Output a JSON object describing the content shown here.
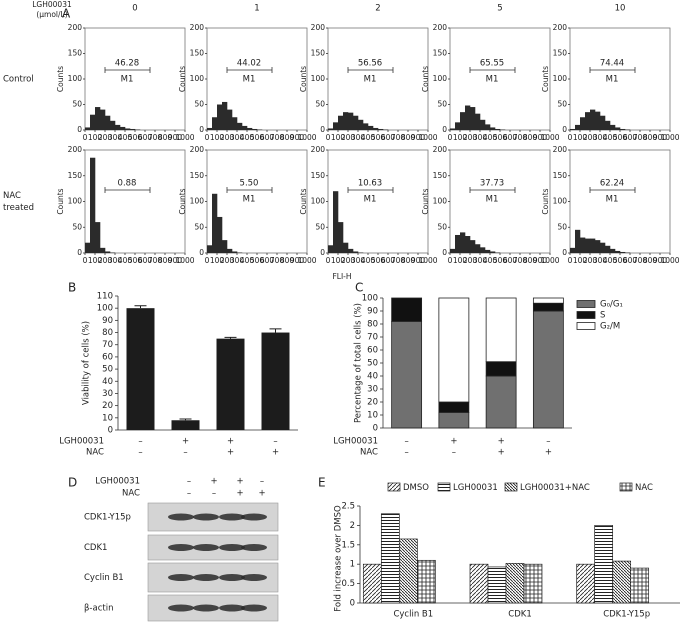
{
  "panel_labels": [
    "A",
    "B",
    "C",
    "D",
    "E"
  ],
  "chart_data": [
    {
      "type": "histogram-grid",
      "treatment_label": [
        "LGH00031",
        "(μmol/L)"
      ],
      "columns": [
        "0",
        "1",
        "2",
        "5",
        "10"
      ],
      "rows": [
        [
          "Control"
        ],
        [
          "NAC",
          "treated"
        ]
      ],
      "xlabel": "FLI-H",
      "ylabel": "Counts",
      "color": "#2b2b2b",
      "bins": [
        0,
        50,
        100,
        150,
        200,
        250,
        300,
        350,
        400,
        450,
        500,
        550,
        600,
        650,
        700,
        750,
        800,
        850,
        900,
        950,
        1000
      ],
      "xlim": [
        0,
        1000
      ],
      "xticks": [
        0,
        100,
        200,
        300,
        400,
        500,
        600,
        700,
        800,
        900,
        1000
      ],
      "ylim": [
        0,
        200
      ],
      "yticks": [
        0,
        50,
        100,
        150,
        200
      ],
      "panels": [
        {
          "gate": "46.28",
          "gate_name": "M1",
          "counts": [
            5,
            30,
            45,
            40,
            28,
            18,
            10,
            6,
            3,
            2,
            1,
            0,
            0,
            0,
            0,
            0,
            0,
            0,
            0,
            0
          ]
        },
        {
          "gate": "44.02",
          "gate_name": "M1",
          "counts": [
            4,
            25,
            50,
            55,
            40,
            25,
            14,
            8,
            4,
            2,
            1,
            0,
            0,
            0,
            0,
            0,
            0,
            0,
            0,
            0
          ]
        },
        {
          "gate": "56.56",
          "gate_name": "M1",
          "counts": [
            3,
            15,
            28,
            35,
            34,
            28,
            20,
            13,
            8,
            4,
            2,
            1,
            0,
            0,
            0,
            0,
            0,
            0,
            0,
            0
          ]
        },
        {
          "gate": "65.55",
          "gate_name": "M1",
          "counts": [
            3,
            15,
            35,
            48,
            45,
            32,
            20,
            11,
            5,
            2,
            1,
            0,
            0,
            0,
            0,
            0,
            0,
            0,
            0,
            0
          ]
        },
        {
          "gate": "74.44",
          "gate_name": "M1",
          "counts": [
            2,
            10,
            25,
            35,
            40,
            36,
            28,
            18,
            10,
            5,
            2,
            1,
            0,
            0,
            0,
            0,
            0,
            0,
            0,
            0
          ]
        },
        {
          "gate": "0.88",
          "counts": [
            20,
            185,
            60,
            10,
            3,
            1,
            0,
            0,
            0,
            0,
            0,
            0,
            0,
            0,
            0,
            0,
            0,
            0,
            0,
            0
          ]
        },
        {
          "gate": "5.50",
          "gate_name": "M1",
          "counts": [
            15,
            115,
            70,
            25,
            8,
            3,
            1,
            0,
            0,
            0,
            0,
            0,
            0,
            0,
            0,
            0,
            0,
            0,
            0,
            0
          ]
        },
        {
          "gate": "10.63",
          "gate_name": "M1",
          "counts": [
            15,
            120,
            60,
            20,
            8,
            3,
            1,
            0,
            0,
            0,
            0,
            0,
            0,
            0,
            0,
            0,
            0,
            0,
            0,
            0
          ]
        },
        {
          "gate": "37.73",
          "gate_name": "M1",
          "counts": [
            8,
            35,
            40,
            33,
            25,
            17,
            11,
            6,
            3,
            1,
            0,
            0,
            0,
            0,
            0,
            0,
            0,
            0,
            0,
            0
          ]
        },
        {
          "gate": "62.24",
          "gate_name": "M1",
          "counts": [
            10,
            45,
            30,
            28,
            28,
            25,
            20,
            14,
            8,
            4,
            2,
            1,
            0,
            0,
            0,
            0,
            0,
            0,
            0,
            0
          ]
        }
      ]
    },
    {
      "type": "bar",
      "ylabel": "Viability of cells (%)",
      "color": "#1c1c1c",
      "values": [
        100,
        8,
        75,
        80
      ],
      "errors": [
        2,
        1,
        1,
        3
      ],
      "ylim": [
        0,
        110
      ],
      "yticks": [
        0,
        10,
        20,
        30,
        40,
        50,
        60,
        70,
        80,
        90,
        100,
        110
      ],
      "sign_rows": [
        {
          "label": "LGH00031",
          "signs": [
            "–",
            "+",
            "+",
            "–"
          ]
        },
        {
          "label": "NAC",
          "signs": [
            "–",
            "–",
            "+",
            "+"
          ]
        }
      ]
    },
    {
      "type": "stacked-bar",
      "ylabel": "Percentage of total cells (%)",
      "series": [
        {
          "name": "G₀/G₁",
          "color": "#707070",
          "values": [
            82,
            12,
            40,
            90
          ]
        },
        {
          "name": "S",
          "color": "#111111",
          "values": [
            18,
            8,
            11,
            6
          ]
        },
        {
          "name": "G₂/M",
          "color": "#ffffff",
          "values": [
            0,
            80,
            49,
            4
          ]
        }
      ],
      "ylim": [
        0,
        100
      ],
      "yticks": [
        0,
        10,
        20,
        30,
        40,
        50,
        60,
        70,
        80,
        90,
        100
      ],
      "sign_rows": [
        {
          "label": "LGH00031",
          "signs": [
            "–",
            "+",
            "+",
            "–"
          ]
        },
        {
          "label": "NAC",
          "signs": [
            "–",
            "–",
            "+",
            "+"
          ]
        }
      ]
    },
    {
      "type": "blot",
      "sign_rows": [
        {
          "label": "LGH00031",
          "signs": [
            "–",
            "+",
            "+",
            "–"
          ]
        },
        {
          "label": "NAC",
          "signs": [
            "–",
            "–",
            "+",
            "+"
          ]
        }
      ],
      "bands": [
        "CDK1-Y15p",
        "CDK1",
        "Cyclin B1",
        "β-actin"
      ]
    },
    {
      "type": "grouped-bar",
      "ylabel": "Fold increase over DMSO",
      "categories": [
        "Cyclin B1",
        "CDK1",
        "CDK1-Y15p"
      ],
      "series": [
        {
          "name": "DMSO",
          "pattern": "diagonal",
          "values": [
            1,
            1,
            1
          ]
        },
        {
          "name": "LGH00031",
          "pattern": "horizontal",
          "values": [
            2.3,
            0.93,
            2.0
          ]
        },
        {
          "name": "LGH00031+NAC",
          "pattern": "backdiagonal",
          "values": [
            1.65,
            1.02,
            1.08
          ]
        },
        {
          "name": "NAC",
          "pattern": "grid",
          "values": [
            1.1,
            1.0,
            0.9
          ]
        }
      ],
      "ylim": [
        0,
        2.5
      ],
      "yticks": [
        0,
        0.5,
        1,
        1.5,
        2,
        2.5
      ]
    }
  ]
}
